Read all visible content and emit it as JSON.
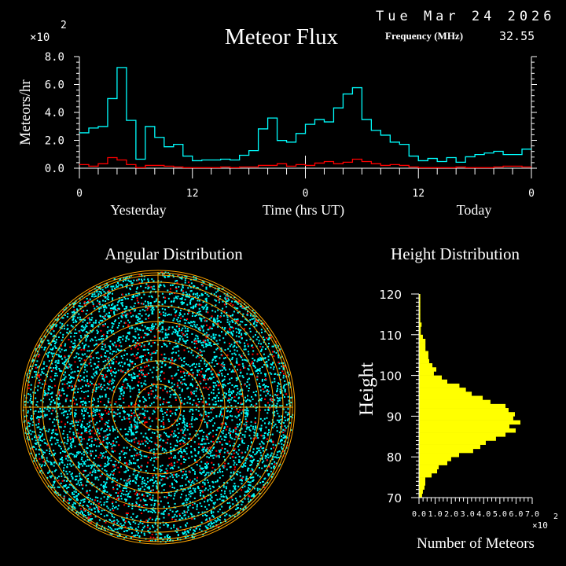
{
  "header": {
    "date": "Tue Mar 24 2026",
    "frequency_label": "Frequency (MHz)",
    "frequency_value": "32.55"
  },
  "chart_data": [
    {
      "type": "line",
      "title": "Meteor Flux",
      "ylabel": "Meteors/hr",
      "yscale_label": "×10",
      "yscale_exp": "2",
      "xlabel": "Time (hrs UT)",
      "x_period_labels": [
        "Yesterday",
        "Today"
      ],
      "xticks": [
        "0",
        "12",
        "0",
        "12",
        "0"
      ],
      "yticks": [
        "0.0",
        "2.0",
        "4.0",
        "6.0",
        "8.0"
      ],
      "ylim": [
        0,
        8
      ],
      "step": "hourly histogram over 48 hours",
      "colors": {
        "cyan": "#00ffff",
        "red": "#ff0000"
      },
      "series": [
        {
          "color": "#00ffff",
          "values": [
            2.54,
            2.88,
            2.99,
            4.99,
            7.22,
            3.43,
            0.65,
            2.99,
            2.21,
            1.54,
            1.71,
            0.87,
            0.54,
            0.59,
            0.59,
            0.65,
            0.59,
            0.93,
            1.26,
            2.82,
            3.6,
            1.99,
            1.87,
            2.49,
            3.15,
            3.49,
            3.32,
            4.32,
            5.32,
            5.77,
            3.49,
            2.71,
            2.37,
            1.87,
            1.71,
            0.87,
            0.54,
            0.7,
            0.48,
            0.76,
            0.43,
            0.82,
            0.98,
            1.09,
            1.21,
            0.98,
            0.98,
            1.37
          ]
        },
        {
          "color": "#ff0000",
          "values": [
            0.26,
            0.15,
            0.32,
            0.76,
            0.59,
            0.26,
            0.04,
            0.2,
            0.2,
            0.15,
            0.09,
            0.04,
            0.04,
            0.04,
            0.04,
            0.09,
            0.04,
            0.09,
            0.09,
            0.2,
            0.2,
            0.32,
            0.15,
            0.26,
            0.2,
            0.37,
            0.48,
            0.32,
            0.43,
            0.65,
            0.48,
            0.32,
            0.2,
            0.26,
            0.2,
            0.09,
            0.04,
            0.04,
            0.04,
            0.04,
            0.09,
            0.04,
            0.04,
            0.04,
            0.09,
            0.15,
            0.15,
            0.09
          ]
        }
      ]
    },
    {
      "type": "scatter",
      "title": "Angular Distribution",
      "projection": "polar sky map",
      "colors": {
        "points": "#00ffff",
        "highlight": "#ff0000",
        "rings": "#ffa500"
      },
      "series": [
        {
          "color": "#00ffff",
          "density": "increasing toward horizon"
        },
        {
          "color": "#ff0000",
          "density": "sparse"
        }
      ]
    },
    {
      "type": "bar",
      "orientation": "horizontal",
      "title": "Height Distribution",
      "ylabel": "Height",
      "xlabel": "Number of Meteors",
      "xscale_label": "×10",
      "xscale_exp": "2",
      "ylim": [
        70,
        120
      ],
      "xlim": [
        0,
        7
      ],
      "yticks": [
        "70",
        "80",
        "90",
        "100",
        "110",
        "120"
      ],
      "xticks": [
        "0.0",
        "1.0",
        "2.0",
        "3.0",
        "4.0",
        "5.0",
        "6.0",
        "7.0"
      ],
      "color": "#ffff00",
      "bin_lower_edges": [
        119,
        118,
        117,
        116,
        115,
        114,
        113,
        112,
        111,
        110,
        109,
        108,
        107,
        106,
        105,
        104,
        103,
        102,
        101,
        100,
        99,
        98,
        97,
        96,
        95,
        94,
        93,
        92,
        91,
        90,
        89,
        88,
        87,
        86,
        85,
        84,
        83,
        82,
        81,
        80,
        79,
        78,
        77,
        76,
        75,
        74,
        73,
        72,
        71,
        70
      ],
      "values": [
        0.08,
        0.08,
        0.08,
        0.08,
        0.08,
        0.08,
        0.08,
        0.16,
        0.11,
        0.11,
        0.24,
        0.4,
        0.4,
        0.4,
        0.58,
        0.58,
        0.63,
        0.83,
        1.07,
        0.92,
        1.41,
        1.75,
        2.5,
        2.9,
        3.26,
        3.94,
        4.42,
        5.35,
        5.54,
        5.93,
        5.83,
        6.27,
        5.59,
        5.98,
        5.35,
        4.76,
        4.13,
        3.79,
        3.35,
        2.48,
        1.99,
        1.75,
        1.22,
        1.12,
        0.78,
        0.39,
        0.39,
        0.34,
        0.24,
        0.19
      ]
    }
  ]
}
